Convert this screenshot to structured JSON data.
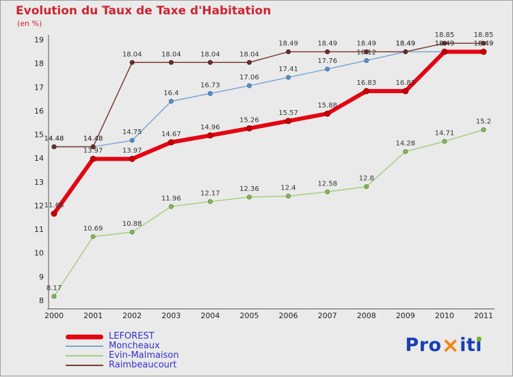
{
  "chart_data": {
    "type": "line",
    "title": "Evolution du Taux de Taxe d'Habitation",
    "subtitle": "(en %)",
    "x": [
      2000,
      2001,
      2002,
      2003,
      2004,
      2005,
      2006,
      2007,
      2008,
      2009,
      2010,
      2011
    ],
    "ylim": [
      8,
      19
    ],
    "yticks": [
      8,
      9,
      10,
      11,
      12,
      13,
      14,
      15,
      16,
      17,
      18,
      19
    ],
    "grid": false,
    "legend_position": "bottom-left",
    "series": [
      {
        "name": "LEFOREST",
        "color": "#e30613",
        "marker_fill": "#cc0000",
        "marker_stroke": "#8b0000",
        "width": 6,
        "values": [
          11.66,
          13.97,
          13.97,
          14.67,
          14.96,
          15.26,
          15.57,
          15.88,
          16.83,
          16.83,
          18.49,
          18.49
        ]
      },
      {
        "name": "Moncheaux",
        "color": "#7aa7d4",
        "marker_fill": "#5e8fc4",
        "marker_stroke": "#3c6da8",
        "width": 1.5,
        "values": [
          14.48,
          14.48,
          14.75,
          16.4,
          16.73,
          17.06,
          17.41,
          17.76,
          18.12,
          18.49,
          18.49,
          18.49
        ]
      },
      {
        "name": "Evin-Malmaison",
        "color": "#a3cf7f",
        "marker_fill": "#86b95e",
        "marker_stroke": "#5e8c3c",
        "width": 1.5,
        "values": [
          8.17,
          10.69,
          10.88,
          11.96,
          12.17,
          12.36,
          12.4,
          12.58,
          12.8,
          14.28,
          14.71,
          15.2
        ]
      },
      {
        "name": "Raimbeaucourt",
        "color": "#7b3b30",
        "marker_fill": "#6b2f28",
        "marker_stroke": "#4a1f1a",
        "width": 1.5,
        "values": [
          14.48,
          14.48,
          18.04,
          18.04,
          18.04,
          18.04,
          18.49,
          18.49,
          18.49,
          18.49,
          18.85,
          18.85
        ]
      }
    ],
    "label_color": "#333333",
    "tick_color": "#222222",
    "axis_color": "#555555",
    "title_color": "#cc2530",
    "legend_text_color": "#3030cc",
    "background": "#eaeaea"
  },
  "logo": {
    "part_pro": "Pro",
    "part_x": "×",
    "part_it": "it",
    "part_i": "i"
  }
}
